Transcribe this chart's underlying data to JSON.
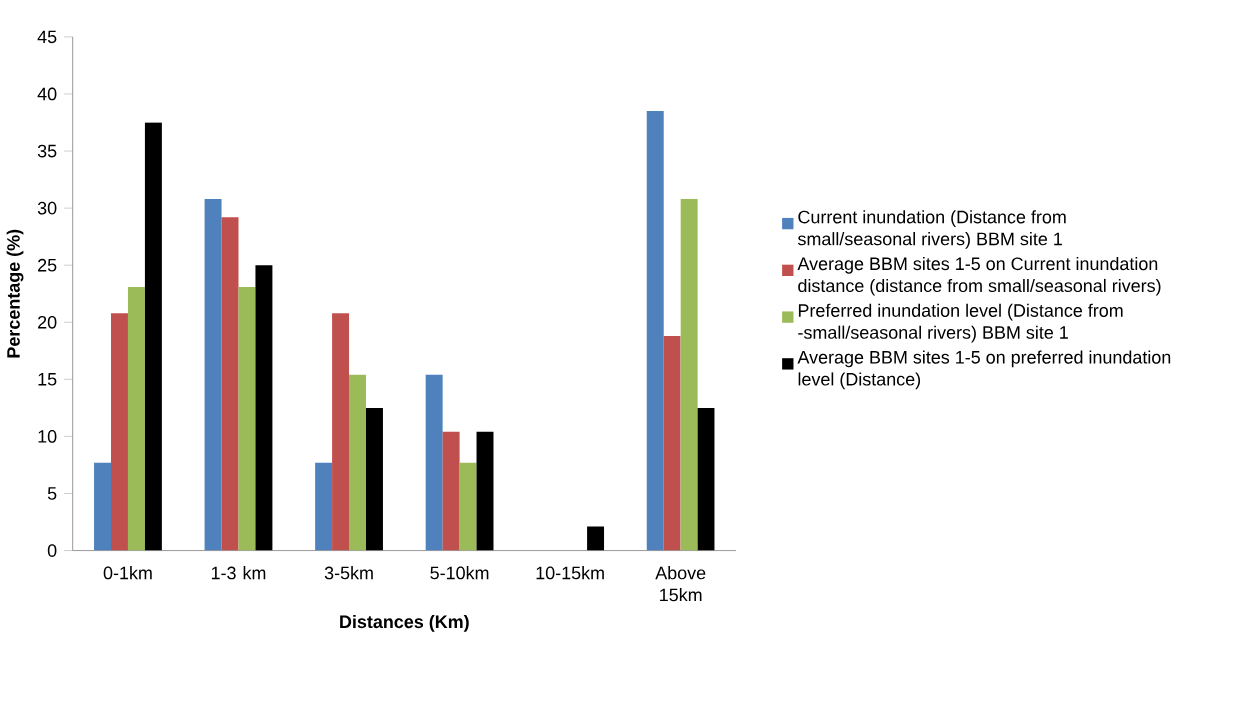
{
  "chart_data": {
    "type": "bar",
    "xlabel": "Distances (Km)",
    "ylabel": "Percentage (%)",
    "categories": [
      "0-1km",
      "1-3 km",
      "3-5km",
      "5-10km",
      "10-15km",
      "Above 15km"
    ],
    "series": [
      {
        "name": "Current inundation (Distance from small/seasonal rivers) BBM site 1",
        "color": "#4f81bd",
        "values": [
          7.7,
          30.8,
          7.7,
          15.4,
          0,
          38.5
        ]
      },
      {
        "name": "Average BBM sites 1-5 on Current inundation distance (distance from small/seasonal rivers)",
        "color": "#c0504d",
        "values": [
          20.8,
          29.2,
          20.8,
          10.4,
          0,
          18.8
        ]
      },
      {
        "name": "Preferred inundation level (Distance from -small/seasonal rivers) BBM site 1",
        "color": "#9bbb59",
        "values": [
          23.1,
          23.1,
          15.4,
          7.7,
          0,
          30.8
        ]
      },
      {
        "name": "Average BBM sites 1-5 on preferred inundation level (Distance)",
        "color": "#000000",
        "values": [
          37.5,
          25,
          12.5,
          10.4,
          2.1,
          12.5
        ]
      }
    ],
    "ylim": [
      0,
      45
    ],
    "yticks": [
      0,
      5,
      10,
      15,
      20,
      25,
      30,
      35,
      40,
      45
    ],
    "grid": false,
    "legend": "right"
  }
}
